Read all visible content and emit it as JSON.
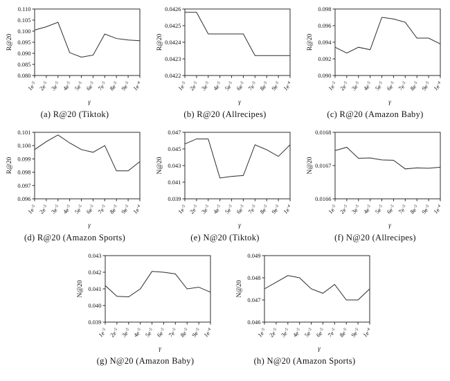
{
  "figure": {
    "line_color": "#2b2b2b",
    "text_color": "#111111",
    "background": "#ffffff"
  },
  "chart_data": [
    {
      "id": "a",
      "type": "line",
      "title": "(a) R@20 (Tiktok)",
      "caption": "(a) R@20 (Tiktok)",
      "xlabel": "γ",
      "ylabel": "R@20",
      "categories": [
        "1e-5",
        "2e-5",
        "3e-5",
        "4e-5",
        "5e-5",
        "6e-5",
        "7e-5",
        "8e-5",
        "9e-5",
        "1e-4"
      ],
      "values": [
        0.1005,
        0.102,
        0.104,
        0.0903,
        0.0883,
        0.0892,
        0.0987,
        0.0967,
        0.096,
        0.0957
      ],
      "ylim": [
        0.08,
        0.11
      ],
      "yticks": [
        "0.080",
        "0.085",
        "0.090",
        "0.095",
        "0.100",
        "0.105",
        "0.110"
      ],
      "grid": false,
      "legend": "none"
    },
    {
      "id": "b",
      "type": "line",
      "title": "(b) R@20 (Allrecipes)",
      "caption": "(b) R@20 (Allrecipes)",
      "xlabel": "γ",
      "ylabel": "R@20",
      "categories": [
        "1e-5",
        "2e-5",
        "3e-5",
        "4e-5",
        "5e-5",
        "6e-5",
        "7e-5",
        "8e-5",
        "9e-5",
        "1e-4"
      ],
      "values": [
        0.04258,
        0.04258,
        0.04245,
        0.04245,
        0.04245,
        0.04245,
        0.04232,
        0.04232,
        0.04232,
        0.04232
      ],
      "ylim": [
        0.0422,
        0.0426
      ],
      "yticks": [
        "0.0422",
        "0.0423",
        "0.0424",
        "0.0425",
        "0.0426"
      ],
      "grid": false,
      "legend": "none"
    },
    {
      "id": "c",
      "type": "line",
      "title": "(c) R@20 (Amazon Baby)",
      "caption": "(c) R@20 (Amazon Baby)",
      "xlabel": "γ",
      "ylabel": "R@20",
      "categories": [
        "1e-5",
        "2e-5",
        "3e-5",
        "4e-5",
        "5e-5",
        "6e-5",
        "7e-5",
        "8e-5",
        "9e-5",
        "1e-4"
      ],
      "values": [
        0.0934,
        0.0927,
        0.0934,
        0.0931,
        0.097,
        0.0968,
        0.0964,
        0.0945,
        0.0945,
        0.0938
      ],
      "ylim": [
        0.09,
        0.098
      ],
      "yticks": [
        "0.090",
        "0.092",
        "0.094",
        "0.096",
        "0.098"
      ],
      "grid": false,
      "legend": "none"
    },
    {
      "id": "d",
      "type": "line",
      "title": "(d) R@20 (Amazon Sports)",
      "caption": "(d) R@20 (Amazon Sports)",
      "xlabel": "γ",
      "ylabel": "R@20",
      "categories": [
        "1e-5",
        "2e-5",
        "3e-5",
        "4e-5",
        "5e-5",
        "6e-5",
        "7e-5",
        "8e-5",
        "9e-5",
        "1e-4"
      ],
      "values": [
        0.0997,
        0.1003,
        0.1008,
        0.1002,
        0.0997,
        0.0995,
        0.1,
        0.0981,
        0.0981,
        0.0988
      ],
      "ylim": [
        0.096,
        0.101
      ],
      "yticks": [
        "0.096",
        "0.097",
        "0.098",
        "0.099",
        "0.100",
        "0.101"
      ],
      "grid": false,
      "legend": "none"
    },
    {
      "id": "e",
      "type": "line",
      "title": "(e) N@20 (Tiktok)",
      "caption": "(e) N@20 (Tiktok)",
      "xlabel": "γ",
      "ylabel": "N@20",
      "categories": [
        "1e-5",
        "2e-5",
        "3e-5",
        "4e-5",
        "5e-5",
        "6e-5",
        "7e-5",
        "8e-5",
        "9e-5",
        "1e-4"
      ],
      "values": [
        0.0456,
        0.0462,
        0.0462,
        0.0415,
        0.0417,
        0.0418,
        0.0455,
        0.0449,
        0.0441,
        0.0455
      ],
      "ylim": [
        0.039,
        0.047
      ],
      "yticks": [
        "0.039",
        "0.041",
        "0.043",
        "0.045",
        "0.047"
      ],
      "grid": false,
      "legend": "none"
    },
    {
      "id": "f",
      "type": "line",
      "title": "(f) N@20 (Allrecipes)",
      "caption": "(f) N@20 (Allrecipes)",
      "xlabel": "γ",
      "ylabel": "N@20",
      "categories": [
        "1e-5",
        "2e-5",
        "3e-5",
        "4e-5",
        "5e-5",
        "6e-5",
        "7e-5",
        "8e-5",
        "9e-5",
        "1e-4"
      ],
      "values": [
        0.016745,
        0.016755,
        0.016722,
        0.016723,
        0.016717,
        0.016716,
        0.01669,
        0.016693,
        0.016692,
        0.016695
      ],
      "ylim": [
        0.0166,
        0.0168
      ],
      "yticks": [
        "0.0166",
        "0.0167",
        "0.0168"
      ],
      "grid": false,
      "legend": "none"
    },
    {
      "id": "g",
      "type": "line",
      "title": "(g) N@20 (Amazon Baby)",
      "caption": "(g) N@20 (Amazon Baby)",
      "xlabel": "γ",
      "ylabel": "N@20",
      "categories": [
        "1e-5",
        "2e-5",
        "3e-5",
        "4e-5",
        "5e-5",
        "6e-5",
        "7e-5",
        "8e-5",
        "9e-5",
        "1e-4"
      ],
      "values": [
        0.0412,
        0.04055,
        0.04052,
        0.041,
        0.04205,
        0.042,
        0.0419,
        0.041,
        0.0411,
        0.0408
      ],
      "ylim": [
        0.039,
        0.043
      ],
      "yticks": [
        "0.039",
        "0.040",
        "0.041",
        "0.042",
        "0.043"
      ],
      "grid": false,
      "legend": "none"
    },
    {
      "id": "h",
      "type": "line",
      "title": "(h) N@20 (Amazon Sports)",
      "caption": "(h) N@20 (Amazon Sports)",
      "xlabel": "γ",
      "ylabel": "N@20",
      "categories": [
        "1e-5",
        "2e-5",
        "3e-5",
        "4e-5",
        "5e-5",
        "6e-5",
        "7e-5",
        "8e-5",
        "9e-5",
        "1e-4"
      ],
      "values": [
        0.0475,
        0.0478,
        0.0481,
        0.048,
        0.0475,
        0.0473,
        0.0477,
        0.047,
        0.047,
        0.0475
      ],
      "ylim": [
        0.046,
        0.049
      ],
      "yticks": [
        "0.046",
        "0.047",
        "0.048",
        "0.049"
      ],
      "grid": false,
      "legend": "none"
    }
  ]
}
